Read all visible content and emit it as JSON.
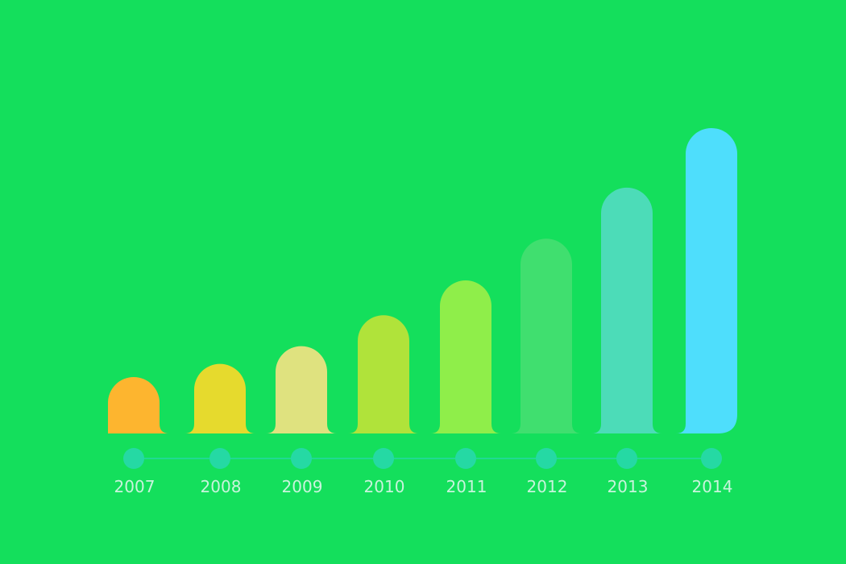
{
  "background_color": "#14df5c",
  "chart_data": {
    "type": "bar",
    "title": "",
    "xlabel": "",
    "ylabel": "",
    "categories": [
      "2007",
      "2008",
      "2009",
      "2010",
      "2011",
      "2012",
      "2013",
      "2014"
    ],
    "values": [
      73,
      90,
      113,
      153,
      198,
      252,
      318,
      395
    ],
    "ylim": [
      0,
      420
    ],
    "grid": false,
    "legend": "none",
    "bar_colors": [
      "#fdb52f",
      "#e6da2d",
      "#dfe27f",
      "#b0e33a",
      "#8fee4a",
      "#40df6f",
      "#4cdcb8",
      "#4edefc"
    ],
    "timeline": {
      "dot_color": "#25d9a4",
      "line_color": "#25d9a4"
    }
  }
}
